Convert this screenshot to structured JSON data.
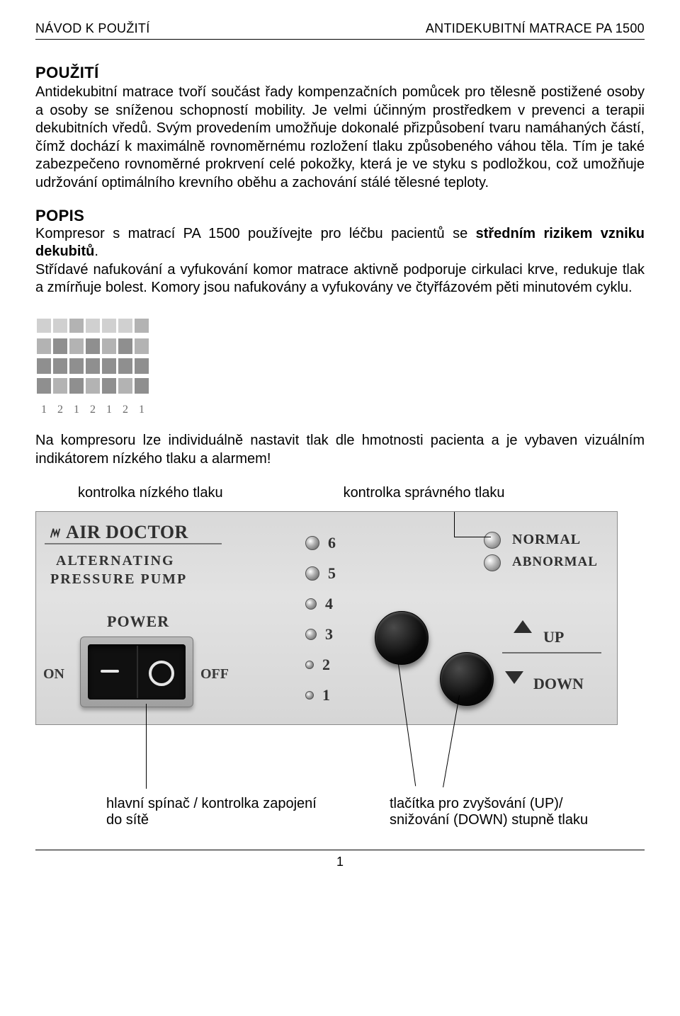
{
  "header": {
    "left": "NÁVOD K POUŽITÍ",
    "right": "ANTIDEKUBITNÍ MATRACE PA 1500"
  },
  "sections": {
    "use_title": "POUŽITÍ",
    "use_body": "Antidekubitní matrace tvoří součást řady kompenzačních pomůcek pro tělesně postižené osoby a osoby se sníženou schopností mobility. Je velmi účinným prostředkem v prevenci a terapii dekubitních vředů. Svým provedením umožňuje dokonalé přizpůsobení tvaru namáhaných částí, čímž dochází k maximálně rovnoměrnému rozložení tlaku způsobeného váhou těla. Tím je také zabezpečeno rovnoměrné prokrvení celé pokožky, která je ve styku s podložkou, což umožňuje udržování optimálního krevního oběhu a zachování stálé tělesné teploty.",
    "popis_title": "POPIS",
    "popis_p1_pre": "Kompresor s matrací PA 1500 používejte pro léčbu pacientů se ",
    "popis_p1_bold": "středním rizikem vzniku dekubitů",
    "popis_p1_post": ".",
    "popis_p2": "Střídavé nafukování a vyfukování komor matrace aktivně podporuje cirkulaci krve, redukuje tlak a zmírňuje bolest.  Komory jsou nafukovány a vyfukovány ve čtyřfázovém pěti minutovém cyklu.",
    "after_diagram": "Na kompresoru lze individuálně nastavit tlak dle hmotnosti pacienta a je vybaven vizuálním indikátorem nízkého tlaku a alarmem!",
    "callout_left": "kontrolka nízkého tlaku",
    "callout_right": "kontrolka správného tlaku",
    "bottom_left": "hlavní spínač / kontrolka zapojení do sítě",
    "bottom_right": "tlačítka pro zvyšování (UP)/ snižování (DOWN) stupně tlaku"
  },
  "phase": {
    "labels": [
      "1",
      "2",
      "1",
      "2",
      "1",
      "2",
      "1"
    ],
    "colors": {
      "light": "#d0d0d0",
      "mid": "#b3b3b3",
      "dark": "#8f8f8f"
    },
    "r1": [
      "l",
      "l",
      "m",
      "l",
      "l",
      "l",
      "m"
    ],
    "r2": [
      "m",
      "d",
      "m",
      "d",
      "m",
      "d",
      "m"
    ],
    "r3": [
      "d",
      "d",
      "d",
      "d",
      "d",
      "d",
      "d"
    ],
    "r4": [
      "d",
      "m",
      "d",
      "m",
      "d",
      "m",
      "d"
    ]
  },
  "panel": {
    "brand": "AIR DOCTOR",
    "sub1": "ALTERNATING",
    "sub2": "PRESSURE PUMP",
    "power": "POWER",
    "on": "ON",
    "off": "OFF",
    "normal": "NORMAL",
    "abnormal": "ABNORMAL",
    "up": "UP",
    "down": "DOWN",
    "levels": [
      "6",
      "5",
      "4",
      "3",
      "2",
      "1"
    ]
  },
  "footer": {
    "page": "1"
  }
}
